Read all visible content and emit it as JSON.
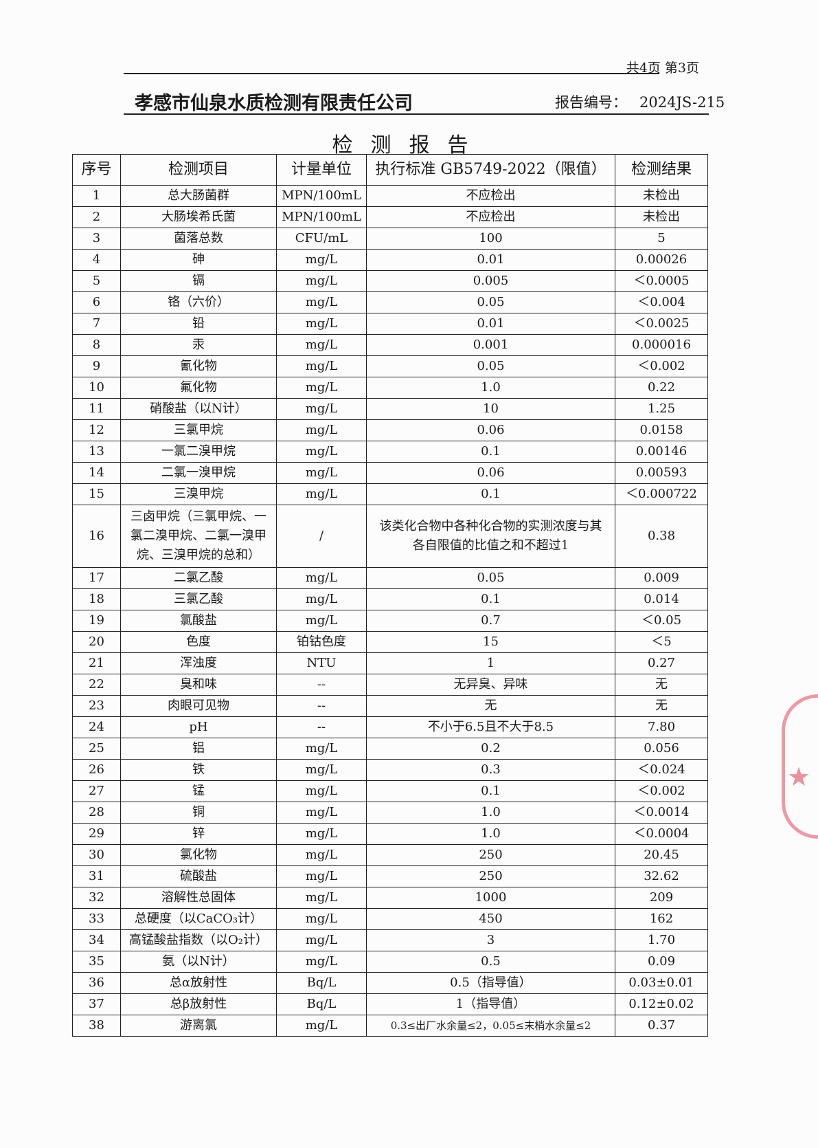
{
  "header": {
    "page_info": "共4页 第3页",
    "company": "孝感市仙泉水质检测有限责任公司",
    "report_no_label": "报告编号：",
    "report_no": "2024JS-215",
    "title": "检测报告"
  },
  "stamp": {
    "color": "#e24a5c"
  },
  "table": {
    "columns": [
      "序号",
      "检测项目",
      "计量单位",
      "执行标准 GB5749-2022（限值）",
      "检测结果"
    ],
    "rows": [
      [
        "1",
        "总大肠菌群",
        "MPN/100mL",
        "不应检出",
        "未检出"
      ],
      [
        "2",
        "大肠埃希氏菌",
        "MPN/100mL",
        "不应检出",
        "未检出"
      ],
      [
        "3",
        "菌落总数",
        "CFU/mL",
        "100",
        "5"
      ],
      [
        "4",
        "砷",
        "mg/L",
        "0.01",
        "0.00026"
      ],
      [
        "5",
        "镉",
        "mg/L",
        "0.005",
        "＜0.0005"
      ],
      [
        "6",
        "铬（六价）",
        "mg/L",
        "0.05",
        "＜0.004"
      ],
      [
        "7",
        "铅",
        "mg/L",
        "0.01",
        "＜0.0025"
      ],
      [
        "8",
        "汞",
        "mg/L",
        "0.001",
        "0.000016"
      ],
      [
        "9",
        "氰化物",
        "mg/L",
        "0.05",
        "＜0.002"
      ],
      [
        "10",
        "氟化物",
        "mg/L",
        "1.0",
        "0.22"
      ],
      [
        "11",
        "硝酸盐（以N计）",
        "mg/L",
        "10",
        "1.25"
      ],
      [
        "12",
        "三氯甲烷",
        "mg/L",
        "0.06",
        "0.0158"
      ],
      [
        "13",
        "一氯二溴甲烷",
        "mg/L",
        "0.1",
        "0.00146"
      ],
      [
        "14",
        "二氯一溴甲烷",
        "mg/L",
        "0.06",
        "0.00593"
      ],
      [
        "15",
        "三溴甲烷",
        "mg/L",
        "0.1",
        "＜0.000722"
      ],
      [
        "16",
        "三卤甲烷（三氯甲烷、一氯二溴甲烷、二氯一溴甲烷、三溴甲烷的总和）",
        "/",
        "该类化合物中各种化合物的实测浓度与其各自限值的比值之和不超过1",
        "0.38"
      ],
      [
        "17",
        "二氯乙酸",
        "mg/L",
        "0.05",
        "0.009"
      ],
      [
        "18",
        "三氯乙酸",
        "mg/L",
        "0.1",
        "0.014"
      ],
      [
        "19",
        "氯酸盐",
        "mg/L",
        "0.7",
        "＜0.05"
      ],
      [
        "20",
        "色度",
        "铂钴色度",
        "15",
        "＜5"
      ],
      [
        "21",
        "浑浊度",
        "NTU",
        "1",
        "0.27"
      ],
      [
        "22",
        "臭和味",
        "--",
        "无异臭、异味",
        "无"
      ],
      [
        "23",
        "肉眼可见物",
        "--",
        "无",
        "无"
      ],
      [
        "24",
        "pH",
        "--",
        "不小于6.5且不大于8.5",
        "7.80"
      ],
      [
        "25",
        "铝",
        "mg/L",
        "0.2",
        "0.056"
      ],
      [
        "26",
        "铁",
        "mg/L",
        "0.3",
        "＜0.024"
      ],
      [
        "27",
        "锰",
        "mg/L",
        "0.1",
        "＜0.002"
      ],
      [
        "28",
        "铜",
        "mg/L",
        "1.0",
        "＜0.0014"
      ],
      [
        "29",
        "锌",
        "mg/L",
        "1.0",
        "＜0.0004"
      ],
      [
        "30",
        "氯化物",
        "mg/L",
        "250",
        "20.45"
      ],
      [
        "31",
        "硫酸盐",
        "mg/L",
        "250",
        "32.62"
      ],
      [
        "32",
        "溶解性总固体",
        "mg/L",
        "1000",
        "209"
      ],
      [
        "33",
        "总硬度（以CaCO₃计）",
        "mg/L",
        "450",
        "162"
      ],
      [
        "34",
        "高锰酸盐指数（以O₂计）",
        "mg/L",
        "3",
        "1.70"
      ],
      [
        "35",
        "氨（以N计）",
        "mg/L",
        "0.5",
        "0.09"
      ],
      [
        "36",
        "总α放射性",
        "Bq/L",
        "0.5（指导值）",
        "0.03±0.01"
      ],
      [
        "37",
        "总β放射性",
        "Bq/L",
        "1（指导值）",
        "0.12±0.02"
      ],
      [
        "38",
        "游离氯",
        "mg/L",
        "0.3≤出厂水余量≤2，0.05≤末梢水余量≤2",
        "0.37"
      ]
    ]
  }
}
